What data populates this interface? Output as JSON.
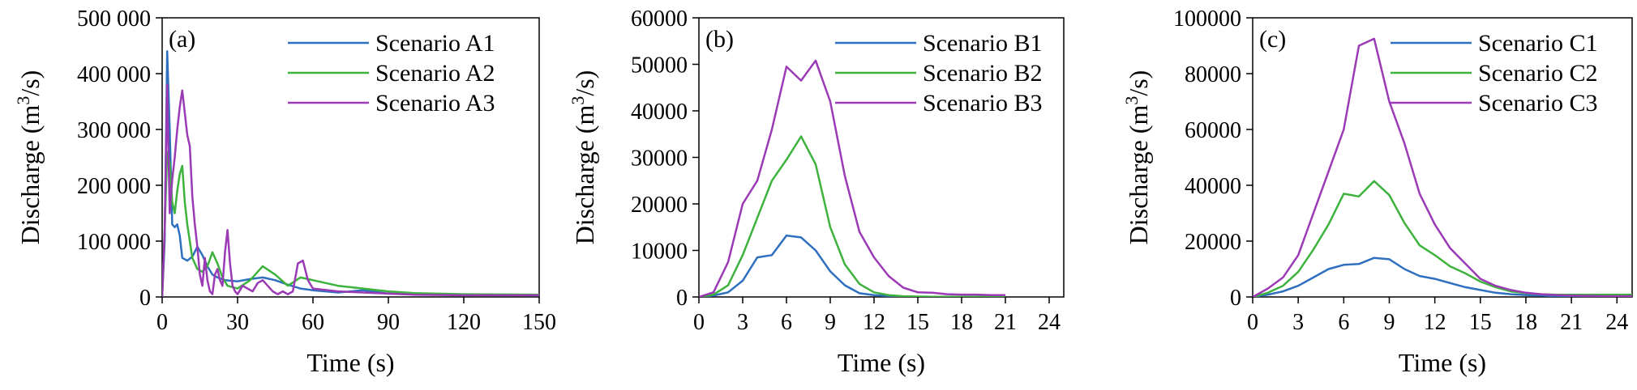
{
  "colors": {
    "series1": "#2f6fbf",
    "series2": "#3db23d",
    "series3": "#9b3ab5"
  },
  "chart_data": [
    {
      "type": "line",
      "panel_label": "(a)",
      "xlabel": "Time (s)",
      "ylabel_main": "Discharge (m",
      "ylabel_sup": "3",
      "ylabel_end": "/s)",
      "xlim": [
        0,
        150
      ],
      "ylim": [
        0,
        500000
      ],
      "xticks": [
        0,
        30,
        60,
        90,
        120,
        150
      ],
      "xtick_labels": [
        "0",
        "30",
        "60",
        "90",
        "120",
        "150"
      ],
      "yticks": [
        0,
        100000,
        200000,
        300000,
        400000,
        500000
      ],
      "ytick_labels": [
        "0",
        "100 000",
        "200 000",
        "300 000",
        "400 000",
        "500 000"
      ],
      "legend_position": "top-right",
      "grid": false,
      "series": [
        {
          "name": "Scenario A1",
          "color": "#2f6fbf",
          "x": [
            0,
            1,
            2,
            3,
            4,
            5,
            6,
            7,
            8,
            10,
            12,
            14,
            16,
            18,
            20,
            22,
            25,
            30,
            35,
            40,
            45,
            50,
            55,
            60,
            65,
            70,
            80,
            90,
            100,
            120,
            150
          ],
          "y": [
            0,
            100000,
            440000,
            300000,
            130000,
            125000,
            130000,
            110000,
            70000,
            65000,
            72000,
            90000,
            75000,
            55000,
            40000,
            35000,
            30000,
            28000,
            32000,
            35000,
            30000,
            22000,
            15000,
            12000,
            10000,
            8000,
            12000,
            6000,
            5000,
            4000,
            3000
          ]
        },
        {
          "name": "Scenario A2",
          "color": "#3db23d",
          "x": [
            0,
            1,
            2,
            3,
            4,
            5,
            6,
            7,
            8,
            9,
            10,
            12,
            14,
            16,
            18,
            20,
            22,
            24,
            26,
            30,
            35,
            40,
            45,
            50,
            55,
            60,
            70,
            80,
            90,
            100,
            120,
            150
          ],
          "y": [
            0,
            120000,
            260000,
            240000,
            170000,
            150000,
            190000,
            220000,
            235000,
            170000,
            130000,
            70000,
            50000,
            45000,
            55000,
            80000,
            60000,
            35000,
            20000,
            15000,
            30000,
            55000,
            40000,
            20000,
            35000,
            30000,
            20000,
            15000,
            10000,
            7000,
            5000,
            4000
          ]
        },
        {
          "name": "Scenario A3",
          "color": "#9b3ab5",
          "x": [
            0,
            1,
            2,
            3,
            4,
            5,
            6,
            7,
            8,
            9,
            10,
            11,
            12,
            13,
            14,
            15,
            16,
            17,
            18,
            19,
            20,
            21,
            22,
            23,
            24,
            25,
            26,
            27,
            28,
            29,
            30,
            32,
            34,
            36,
            38,
            40,
            42,
            44,
            46,
            48,
            50,
            52,
            54,
            56,
            58,
            60,
            70,
            80,
            90,
            100,
            120,
            150
          ],
          "y": [
            0,
            120000,
            380000,
            150000,
            210000,
            250000,
            300000,
            340000,
            370000,
            330000,
            290000,
            270000,
            180000,
            130000,
            90000,
            40000,
            20000,
            70000,
            30000,
            10000,
            5000,
            40000,
            50000,
            30000,
            20000,
            80000,
            120000,
            60000,
            20000,
            10000,
            5000,
            20000,
            15000,
            10000,
            25000,
            30000,
            20000,
            10000,
            5000,
            10000,
            5000,
            10000,
            60000,
            65000,
            30000,
            15000,
            10000,
            8000,
            6000,
            4000,
            3000,
            3000
          ]
        }
      ]
    },
    {
      "type": "line",
      "panel_label": "(b)",
      "xlabel": "Time (s)",
      "ylabel_main": "Discharge (m",
      "ylabel_sup": "3",
      "ylabel_end": "/s)",
      "xlim": [
        0,
        25
      ],
      "ylim": [
        0,
        60000
      ],
      "xticks": [
        0,
        3,
        6,
        9,
        12,
        15,
        18,
        21,
        24
      ],
      "xtick_labels": [
        "0",
        "3",
        "6",
        "9",
        "12",
        "15",
        "18",
        "21",
        "24"
      ],
      "yticks": [
        0,
        10000,
        20000,
        30000,
        40000,
        50000,
        60000
      ],
      "ytick_labels": [
        "0",
        "10000",
        "20000",
        "30000",
        "40000",
        "50000",
        "60000"
      ],
      "legend_position": "top-right",
      "grid": false,
      "series": [
        {
          "name": "Scenario B1",
          "color": "#2f6fbf",
          "x": [
            0,
            1,
            2,
            3,
            4,
            5,
            6,
            7,
            8,
            9,
            10,
            11,
            12,
            13,
            14,
            15,
            16,
            17,
            18,
            19,
            20,
            21
          ],
          "y": [
            0,
            300,
            1000,
            3500,
            8500,
            9000,
            13200,
            12800,
            10000,
            5500,
            2500,
            800,
            400,
            200,
            100,
            50,
            30,
            20,
            10,
            10,
            10,
            10
          ]
        },
        {
          "name": "Scenario B2",
          "color": "#3db23d",
          "x": [
            0,
            1,
            2,
            3,
            4,
            5,
            6,
            7,
            8,
            9,
            10,
            11,
            12,
            13,
            14,
            15,
            16,
            17,
            18,
            19,
            20,
            21
          ],
          "y": [
            0,
            500,
            2500,
            9000,
            17000,
            25000,
            29500,
            34500,
            28500,
            15000,
            7000,
            2800,
            1000,
            400,
            150,
            80,
            50,
            30,
            20,
            10,
            10,
            10
          ]
        },
        {
          "name": "Scenario B3",
          "color": "#9b3ab5",
          "x": [
            0,
            1,
            2,
            3,
            4,
            5,
            6,
            7,
            8,
            9,
            10,
            11,
            12,
            13,
            14,
            15,
            16,
            17,
            18,
            19,
            20,
            21
          ],
          "y": [
            0,
            1000,
            7500,
            20000,
            25000,
            36000,
            49500,
            46500,
            50800,
            42000,
            26000,
            14000,
            8500,
            4500,
            2000,
            1000,
            900,
            600,
            500,
            500,
            400,
            400
          ]
        }
      ]
    },
    {
      "type": "line",
      "panel_label": "(c)",
      "xlabel": "Time (s)",
      "ylabel_main": "Discharge (m",
      "ylabel_sup": "3",
      "ylabel_end": "/s)",
      "xlim": [
        0,
        25
      ],
      "ylim": [
        0,
        100000
      ],
      "xticks": [
        0,
        3,
        6,
        9,
        12,
        15,
        18,
        21,
        24
      ],
      "xtick_labels": [
        "0",
        "3",
        "6",
        "9",
        "12",
        "15",
        "18",
        "21",
        "24"
      ],
      "yticks": [
        0,
        20000,
        40000,
        60000,
        80000,
        100000
      ],
      "ytick_labels": [
        "0",
        "20000",
        "40000",
        "60000",
        "80000",
        "100000"
      ],
      "legend_position": "top-right",
      "grid": false,
      "series": [
        {
          "name": "Scenario C1",
          "color": "#2f6fbf",
          "x": [
            0,
            1,
            2,
            3,
            4,
            5,
            6,
            7,
            8,
            9,
            10,
            11,
            12,
            13,
            14,
            15,
            16,
            17,
            18,
            19,
            20,
            21,
            22,
            23,
            24,
            25
          ],
          "y": [
            0,
            800,
            2000,
            4000,
            7000,
            10000,
            11500,
            11800,
            14000,
            13500,
            10000,
            7500,
            6500,
            5000,
            3500,
            2500,
            1500,
            1000,
            700,
            500,
            300,
            200,
            100,
            100,
            100,
            100
          ]
        },
        {
          "name": "Scenario C2",
          "color": "#3db23d",
          "x": [
            0,
            1,
            2,
            3,
            4,
            5,
            6,
            7,
            8,
            9,
            10,
            11,
            12,
            13,
            14,
            15,
            16,
            17,
            18,
            19,
            20,
            21,
            22,
            23,
            24,
            25
          ],
          "y": [
            0,
            1500,
            4000,
            9000,
            17000,
            26000,
            37000,
            36000,
            41500,
            36500,
            26500,
            18500,
            15000,
            11000,
            8500,
            5500,
            3500,
            2000,
            1400,
            1000,
            800,
            800,
            800,
            800,
            800,
            800
          ]
        },
        {
          "name": "Scenario C3",
          "color": "#9b3ab5",
          "x": [
            0,
            1,
            2,
            3,
            4,
            5,
            6,
            7,
            8,
            9,
            10,
            11,
            12,
            13,
            14,
            15,
            16,
            17,
            18,
            19,
            20,
            21,
            22,
            23,
            24,
            25
          ],
          "y": [
            0,
            3000,
            7000,
            15000,
            30000,
            45000,
            60000,
            90000,
            92500,
            70000,
            55000,
            37000,
            26000,
            17500,
            12000,
            6500,
            4000,
            2500,
            1500,
            1000,
            700,
            500,
            400,
            300,
            300,
            300
          ]
        }
      ]
    }
  ]
}
